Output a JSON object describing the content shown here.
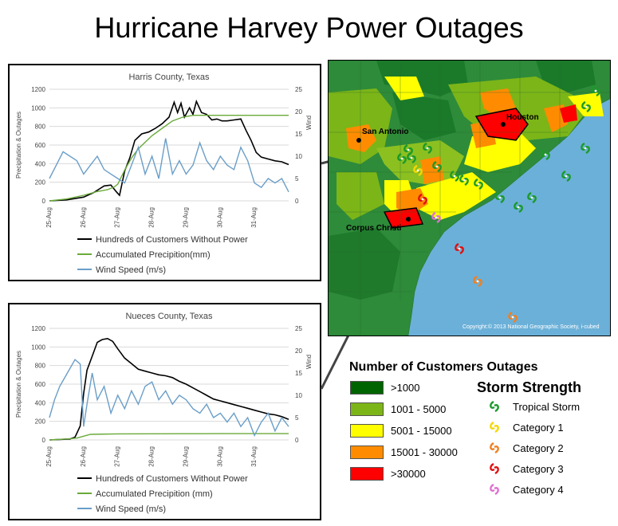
{
  "page": {
    "title": "Hurricane Harvey Power Outages"
  },
  "colors": {
    "outage": "#000000",
    "precip": "#6aaa3a",
    "wind": "#6a9ec8",
    "grid": "#d9d9d9",
    "water": "#6bb0d8"
  },
  "chart_data": [
    {
      "type": "line",
      "title": "Harris County, Texas",
      "ylabel": "Precipitation & Outages",
      "y2label": "Wind",
      "ylim": [
        0,
        1200
      ],
      "yticks": [
        0,
        200,
        400,
        600,
        800,
        1000,
        1200
      ],
      "y2lim": [
        0,
        25
      ],
      "y2ticks": [
        0,
        5,
        10,
        15,
        20,
        25
      ],
      "xlim": [
        0,
        7
      ],
      "categories": [
        "25-Aug",
        "26-Aug",
        "27-Aug",
        "28-Aug",
        "29-Aug",
        "30-Aug",
        "31-Aug"
      ],
      "series": [
        {
          "name": "Hundreds of Customers Without Power",
          "axis": "left",
          "color": "#000000",
          "x": [
            0,
            0.5,
            1.0,
            1.3,
            1.6,
            1.8,
            1.95,
            2.05,
            2.2,
            2.35,
            2.5,
            2.7,
            2.9,
            3.1,
            3.3,
            3.5,
            3.65,
            3.75,
            3.85,
            3.95,
            4.1,
            4.2,
            4.3,
            4.45,
            4.6,
            4.75,
            4.9,
            5.05,
            5.2,
            5.4,
            5.6,
            5.75,
            5.9,
            6.05,
            6.2,
            6.4,
            6.6,
            6.8,
            7.0
          ],
          "values": [
            0,
            10,
            40,
            90,
            160,
            170,
            100,
            60,
            320,
            460,
            650,
            720,
            740,
            780,
            830,
            900,
            1060,
            950,
            1050,
            900,
            1000,
            930,
            1070,
            950,
            930,
            870,
            880,
            860,
            860,
            870,
            880,
            760,
            650,
            520,
            470,
            450,
            430,
            420,
            390
          ]
        },
        {
          "name": "Accumulated Precipition(mm)",
          "axis": "left",
          "color": "#6aaa3a",
          "x": [
            0,
            0.5,
            1.0,
            1.4,
            1.7,
            1.9,
            2.0,
            2.2,
            2.4,
            2.6,
            2.8,
            3.0,
            3.3,
            3.6,
            3.9,
            4.2,
            4.5,
            5.0,
            5.5,
            6.0,
            6.5,
            7.0
          ],
          "values": [
            0,
            20,
            60,
            100,
            120,
            150,
            180,
            330,
            460,
            560,
            630,
            700,
            780,
            860,
            900,
            920,
            920,
            920,
            920,
            920,
            920,
            920
          ]
        },
        {
          "name": "Wind Speed (m/s)",
          "axis": "right",
          "color": "#6a9ec8",
          "x": [
            0,
            0.2,
            0.4,
            0.6,
            0.8,
            1.0,
            1.2,
            1.4,
            1.6,
            1.8,
            2.0,
            2.2,
            2.4,
            2.6,
            2.8,
            3.0,
            3.2,
            3.4,
            3.6,
            3.8,
            4.0,
            4.2,
            4.4,
            4.6,
            4.8,
            5.0,
            5.2,
            5.4,
            5.6,
            5.8,
            6.0,
            6.2,
            6.4,
            6.6,
            6.8,
            7.0
          ],
          "values": [
            5,
            8,
            11,
            10,
            9,
            6,
            8,
            10,
            7,
            6,
            5,
            4,
            8,
            12,
            6,
            10,
            5,
            14,
            6,
            9,
            6,
            8,
            13,
            9,
            7,
            10,
            8,
            7,
            12,
            9,
            4,
            3,
            5,
            4,
            5,
            2
          ]
        }
      ]
    },
    {
      "type": "line",
      "title": "Nueces County, Texas",
      "ylabel": "Precipitation & Outages",
      "y2label": "Wind",
      "ylim": [
        0,
        1200
      ],
      "yticks": [
        0,
        200,
        400,
        600,
        800,
        1000,
        1200
      ],
      "y2lim": [
        0,
        25
      ],
      "y2ticks": [
        0,
        5,
        10,
        15,
        20,
        25
      ],
      "xlim": [
        0,
        7
      ],
      "categories": [
        "25-Aug",
        "26-Aug",
        "27-Aug",
        "28-Aug",
        "29-Aug",
        "30-Aug",
        "31-Aug"
      ],
      "series": [
        {
          "name": "Hundreds of Customers Without Power",
          "axis": "left",
          "color": "#000000",
          "x": [
            0,
            0.3,
            0.6,
            0.75,
            0.9,
            1.0,
            1.1,
            1.25,
            1.4,
            1.55,
            1.7,
            1.85,
            2.0,
            2.2,
            2.4,
            2.6,
            2.8,
            3.0,
            3.2,
            3.4,
            3.6,
            3.8,
            4.0,
            4.2,
            4.4,
            4.6,
            4.8,
            5.0,
            5.2,
            5.4,
            5.6,
            5.8,
            6.0,
            6.2,
            6.4,
            6.6,
            6.8,
            7.0
          ],
          "values": [
            0,
            5,
            10,
            30,
            150,
            500,
            750,
            900,
            1050,
            1080,
            1090,
            1060,
            980,
            880,
            820,
            760,
            740,
            720,
            700,
            690,
            670,
            630,
            600,
            560,
            520,
            480,
            440,
            420,
            400,
            380,
            360,
            340,
            320,
            300,
            280,
            270,
            250,
            220
          ]
        },
        {
          "name": "Accumulated Precipition (mm)",
          "axis": "left",
          "color": "#6aaa3a",
          "x": [
            0,
            0.5,
            0.8,
            1.0,
            1.2,
            2.0,
            3.0,
            4.0,
            5.0,
            6.0,
            7.0
          ],
          "values": [
            0,
            10,
            20,
            40,
            60,
            65,
            66,
            67,
            68,
            68,
            68
          ]
        },
        {
          "name": "Wind Speed (m/s)",
          "axis": "right",
          "color": "#6a9ec8",
          "x": [
            0,
            0.15,
            0.3,
            0.45,
            0.6,
            0.75,
            0.9,
            1.0,
            1.1,
            1.25,
            1.4,
            1.6,
            1.8,
            2.0,
            2.2,
            2.4,
            2.6,
            2.8,
            3.0,
            3.2,
            3.4,
            3.6,
            3.8,
            4.0,
            4.2,
            4.4,
            4.6,
            4.8,
            5.0,
            5.2,
            5.4,
            5.6,
            5.8,
            6.0,
            6.2,
            6.4,
            6.6,
            6.8,
            7.0
          ],
          "values": [
            5,
            9,
            12,
            14,
            16,
            18,
            17,
            3,
            8,
            15,
            9,
            12,
            6,
            10,
            7,
            11,
            8,
            12,
            13,
            9,
            11,
            8,
            10,
            9,
            7,
            6,
            8,
            5,
            6,
            4,
            6,
            3,
            5,
            1,
            4,
            6,
            2,
            5,
            3
          ]
        }
      ]
    }
  ],
  "map": {
    "cities": [
      "San Antonio",
      "Houston",
      "Corpus Christi"
    ],
    "copyright": "Copyright:© 2013 National Geographic Society, i-cubed"
  },
  "legend": {
    "outages_title": "Number of Customers Outages",
    "outages": [
      {
        "label": ">1000",
        "color": "#006400"
      },
      {
        "label": "1001 - 5000",
        "color": "#7cb518"
      },
      {
        "label": "5001 - 15000",
        "color": "#ffff00"
      },
      {
        "label": "15001 - 30000",
        "color": "#ff8c00"
      },
      {
        "label": ">30000",
        "color": "#ff0000"
      }
    ],
    "storm_title": "Storm Strength",
    "storm": [
      {
        "label": "Tropical Storm",
        "color": "#1a9a2a"
      },
      {
        "label": "Category 1",
        "color": "#f5d800"
      },
      {
        "label": "Category 2",
        "color": "#f08020"
      },
      {
        "label": "Category 3",
        "color": "#e01010"
      },
      {
        "label": "Category 4",
        "color": "#e070d0"
      }
    ]
  }
}
